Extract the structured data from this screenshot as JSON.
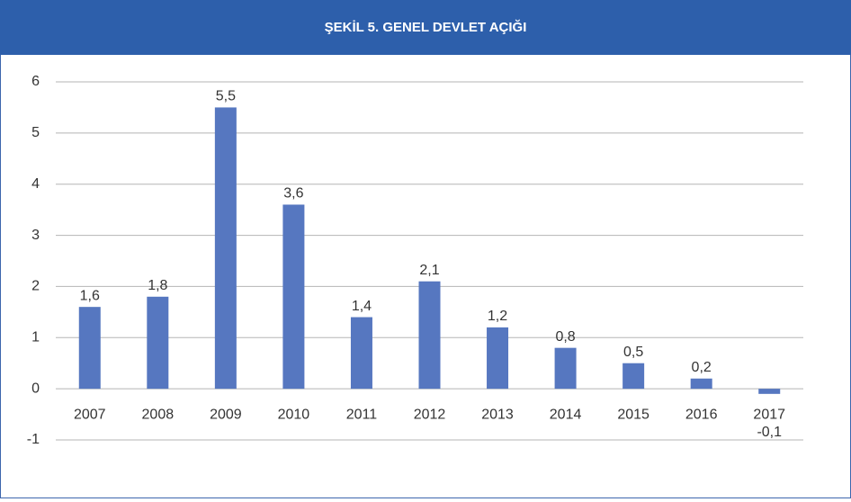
{
  "chart_data": {
    "type": "bar",
    "title": "ŞEKİL 5. GENEL DEVLET AÇIĞI",
    "categories": [
      "2007",
      "2008",
      "2009",
      "2010",
      "2011",
      "2012",
      "2013",
      "2014",
      "2015",
      "2016",
      "2017"
    ],
    "values": [
      1.6,
      1.8,
      5.5,
      3.6,
      1.4,
      2.1,
      1.2,
      0.8,
      0.5,
      0.2,
      -0.1
    ],
    "value_labels": [
      "1,6",
      "1,8",
      "5,5",
      "3,6",
      "1,4",
      "2,1",
      "1,2",
      "0,8",
      "0,5",
      "0,2",
      "-0,1"
    ],
    "color": "#5677c0",
    "ylim": [
      -1,
      6
    ],
    "yticks": [
      -1,
      0,
      1,
      2,
      3,
      4,
      5,
      6
    ],
    "grid": true
  }
}
